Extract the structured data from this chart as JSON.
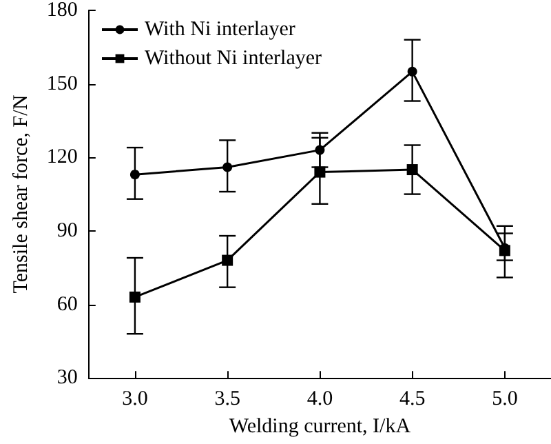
{
  "chart_data": {
    "type": "line",
    "xlabel": "Welding current, I/kA",
    "ylabel": "Tensile shear force, F/N",
    "xlim": [
      2.75,
      5.25
    ],
    "xticks": [
      {
        "value": 3,
        "label": "3.0"
      },
      {
        "value": 3.5,
        "label": "3.5"
      },
      {
        "value": 4,
        "label": "4.0"
      },
      {
        "value": 4.5,
        "label": "4.5"
      },
      {
        "value": 5,
        "label": "5.0"
      }
    ],
    "ylim": [
      30,
      180
    ],
    "yticks": [
      30,
      60,
      90,
      120,
      150,
      180
    ],
    "grid": false,
    "legend": "top left",
    "line_style": "solid",
    "series": [
      {
        "name": "With Ni interlayer",
        "color": "#000000",
        "marker": "circle",
        "x": [
          3,
          3.5,
          4,
          4.5,
          5
        ],
        "values": [
          113,
          116,
          123,
          155,
          83
        ],
        "errors": [
          [
            103,
            124
          ],
          [
            106,
            127
          ],
          [
            116,
            130
          ],
          [
            143,
            168
          ],
          [
            78,
            92
          ]
        ]
      },
      {
        "name": "Without Ni interlayer",
        "color": "#000000",
        "marker": "square",
        "x": [
          3,
          3.5,
          4,
          4.5,
          5
        ],
        "values": [
          63,
          78,
          114,
          115,
          82
        ],
        "errors": [
          [
            48,
            79
          ],
          [
            67,
            88
          ],
          [
            101,
            128
          ],
          [
            105,
            125
          ],
          [
            71,
            89
          ]
        ]
      }
    ]
  }
}
